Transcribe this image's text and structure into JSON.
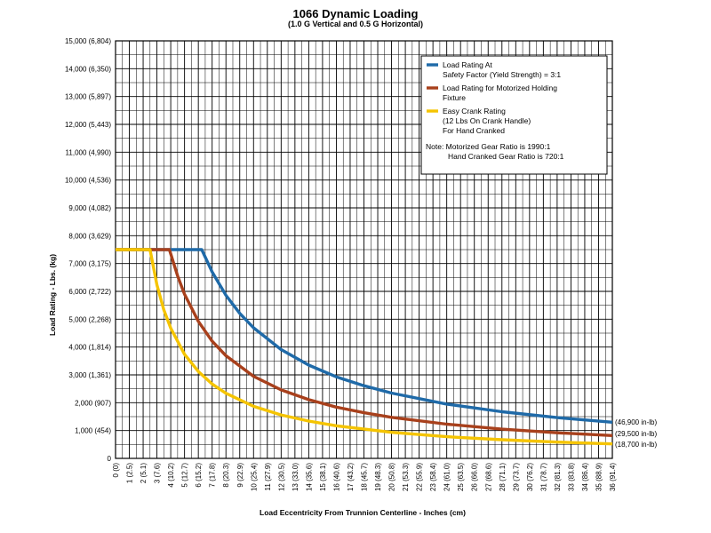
{
  "chart_data": {
    "type": "line",
    "title": "1066 Dynamic Loading",
    "subtitle": "(1.0 G Vertical and 0.5 G Horizontal)",
    "xlabel": "Load Eccentricity From Trunnion Centerline - Inches (cm)",
    "ylabel": "Load Rating - Lbs. (kg)",
    "xlim": [
      0,
      36
    ],
    "ylim": [
      0,
      15000
    ],
    "grid": true,
    "legend_position": "top-right",
    "x_ticks": [
      "0 (0)",
      "1 (2.5)",
      "2 (5.1)",
      "3 (7.6)",
      "4 (10.2)",
      "5 (12.7)",
      "6 (15.2)",
      "7 (17.8)",
      "8 (20.3)",
      "9 (22.9)",
      "10 (25.4)",
      "11 (27.9)",
      "12 (30.5)",
      "13 (33.0)",
      "14 (35.6)",
      "15 (38.1)",
      "16 (40.6)",
      "17 (43.2)",
      "18 (45.7)",
      "19 (48.3)",
      "20 (50.8)",
      "21 (53.3)",
      "22 (55.9)",
      "23 (58.4)",
      "24 (61.0)",
      "25 (63.5)",
      "26 (66.0)",
      "27 (68.6)",
      "28 (71.1)",
      "29 (73.7)",
      "30 (76.2)",
      "31 (78.7)",
      "32 (81.3)",
      "33 (83.8)",
      "34 (86.4)",
      "35 (88.9)",
      "36 (91.4)"
    ],
    "y_ticks": [
      "0",
      "1,000  (454)",
      "2,000  (907)",
      "3,000  (1,361)",
      "4,000  (1,814)",
      "5,000  (2,268)",
      "6,000  (2,722)",
      "7,000  (3,175)",
      "8,000  (3,629)",
      "9,000  (4,082)",
      "10,000  (4,536)",
      "11,000  (4,990)",
      "12,000  (5,443)",
      "13,000  (5,897)",
      "14,000  (6,350)",
      "15,000  (6,804)"
    ],
    "series": [
      {
        "name": "Load Rating At Safety Factor (Yield Strength) = 3:1",
        "color": "#1f6aa8",
        "x": [
          0,
          6.25,
          7,
          8,
          9,
          10,
          12,
          14,
          16,
          18,
          20,
          24,
          28,
          32,
          36
        ],
        "y": [
          7500,
          7500,
          6700,
          5860,
          5210,
          4690,
          3910,
          3350,
          2930,
          2610,
          2345,
          1950,
          1675,
          1465,
          1300
        ],
        "end_label": "(46,900 in-lb)"
      },
      {
        "name": "Load Rating for Motorized Holding Fixture",
        "color": "#a8401c",
        "x": [
          0,
          3.9,
          4.5,
          5,
          6,
          7,
          8,
          10,
          12,
          14,
          16,
          18,
          20,
          24,
          28,
          32,
          36
        ],
        "y": [
          7500,
          7500,
          6550,
          5900,
          4920,
          4210,
          3690,
          2950,
          2460,
          2110,
          1840,
          1640,
          1475,
          1230,
          1050,
          920,
          820
        ],
        "end_label": "(29,500 in-lb)"
      },
      {
        "name": "Easy Crank Rating (12 Lbs On Crank Handle) For Hand Cranked",
        "color": "#f5c400",
        "x": [
          0,
          2.5,
          3,
          3.5,
          4,
          5,
          6,
          7,
          8,
          10,
          12,
          14,
          16,
          20,
          24,
          28,
          32,
          36
        ],
        "y": [
          7500,
          7500,
          6230,
          5340,
          4680,
          3740,
          3120,
          2670,
          2340,
          1870,
          1560,
          1340,
          1170,
          935,
          780,
          670,
          585,
          520
        ],
        "end_label": "(18,700 in-lb)"
      }
    ],
    "legend": {
      "entries": [
        {
          "lines": [
            "Load Rating At",
            "Safety Factor (Yield Strength) = 3:1"
          ],
          "color": "#1f6aa8"
        },
        {
          "lines": [
            "Load Rating for Motorized Holding",
            "Fixture"
          ],
          "color": "#a8401c"
        },
        {
          "lines": [
            "Easy Crank Rating",
            "(12 Lbs On Crank Handle)",
            "For Hand Cranked"
          ],
          "color": "#f5c400"
        }
      ],
      "note": [
        "Note: Motorized Gear Ratio is 1990:1",
        "Hand Cranked Gear Ratio is 720:1"
      ]
    }
  }
}
